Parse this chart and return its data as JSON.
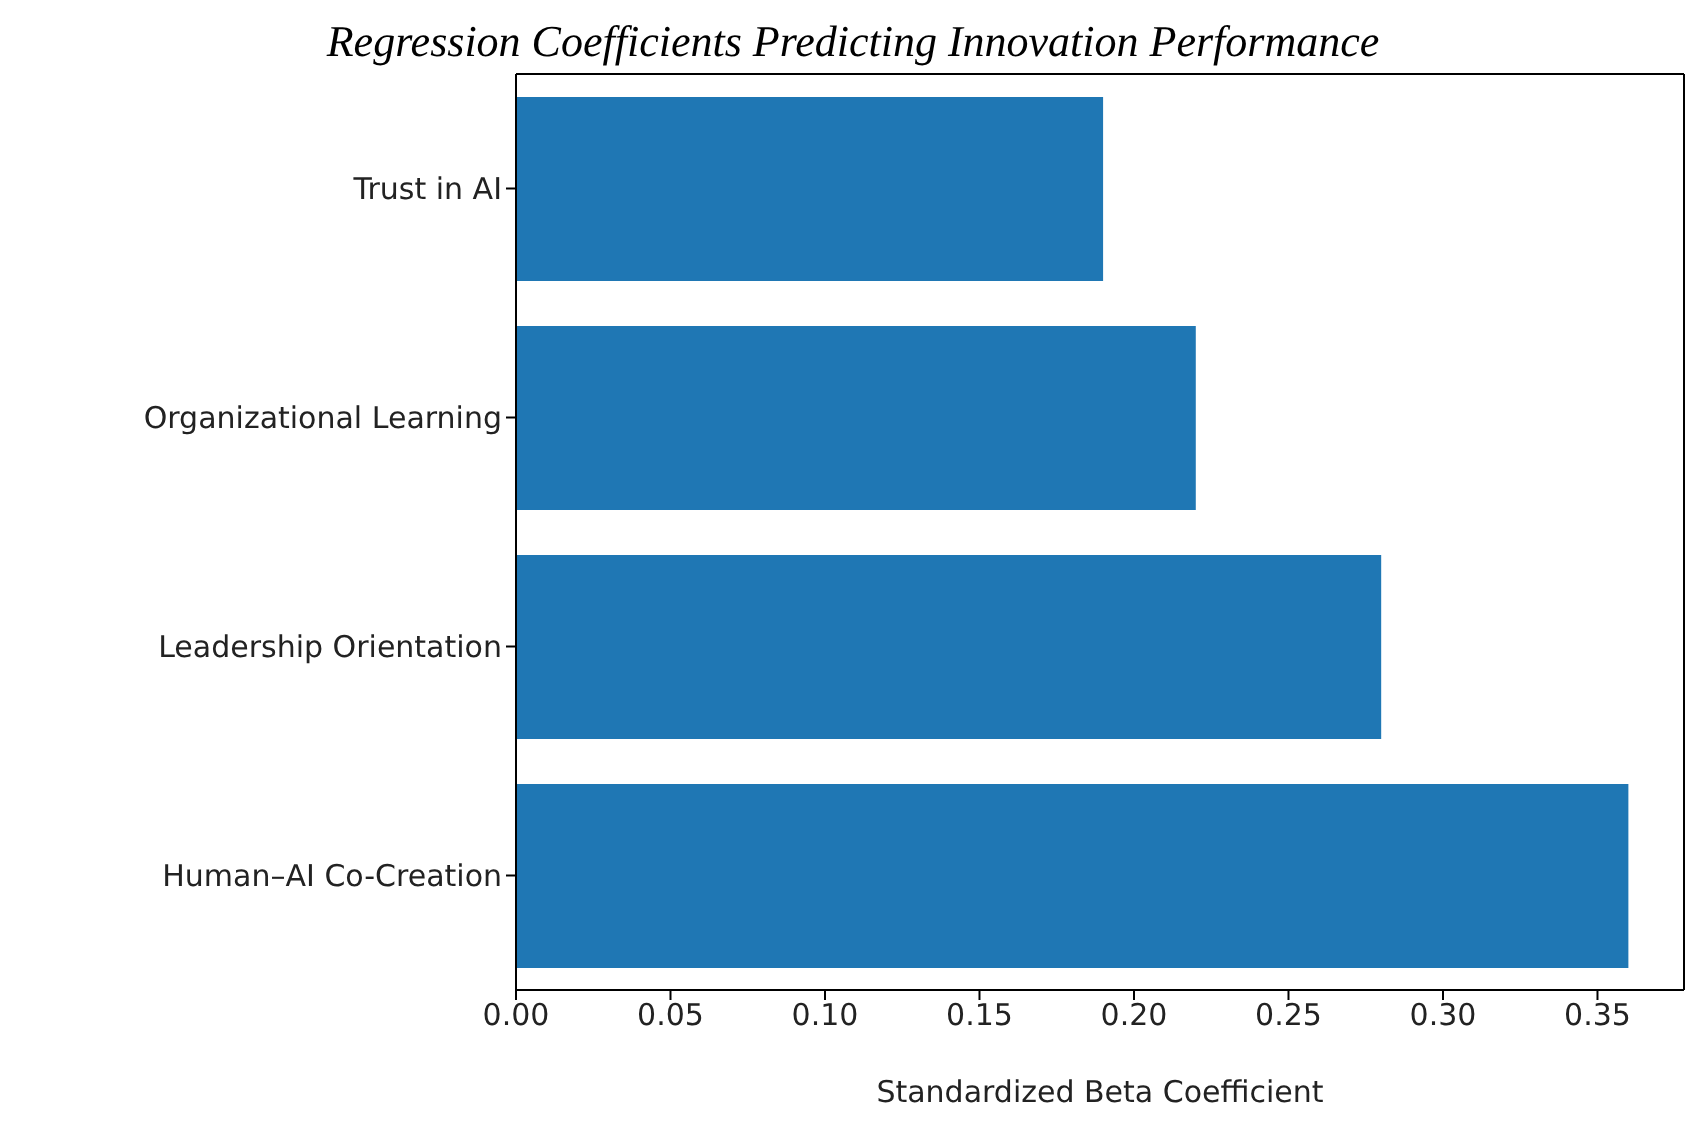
{
  "chart_data": {
    "type": "bar",
    "orientation": "horizontal",
    "title": "Regression Coefficients Predicting Innovation Performance",
    "xlabel": "Standardized Beta Coefficient",
    "categories": [
      "Trust in AI",
      "Organizational Learning",
      "Leadership Orientation",
      "Human–AI Co-Creation"
    ],
    "values": [
      0.19,
      0.22,
      0.28,
      0.36
    ],
    "color": "#1f77b4",
    "xlim": [
      0,
      0.378
    ],
    "xticks": [
      {
        "value": 0,
        "label": "0.00"
      },
      {
        "value": 0.05,
        "label": "0.05"
      },
      {
        "value": 0.1,
        "label": "0.10"
      },
      {
        "value": 0.15,
        "label": "0.15"
      },
      {
        "value": 0.2,
        "label": "0.20"
      },
      {
        "value": 0.25,
        "label": "0.25"
      },
      {
        "value": 0.3,
        "label": "0.30"
      },
      {
        "value": 0.35,
        "label": "0.35"
      }
    ],
    "grid": false,
    "legend": false
  }
}
